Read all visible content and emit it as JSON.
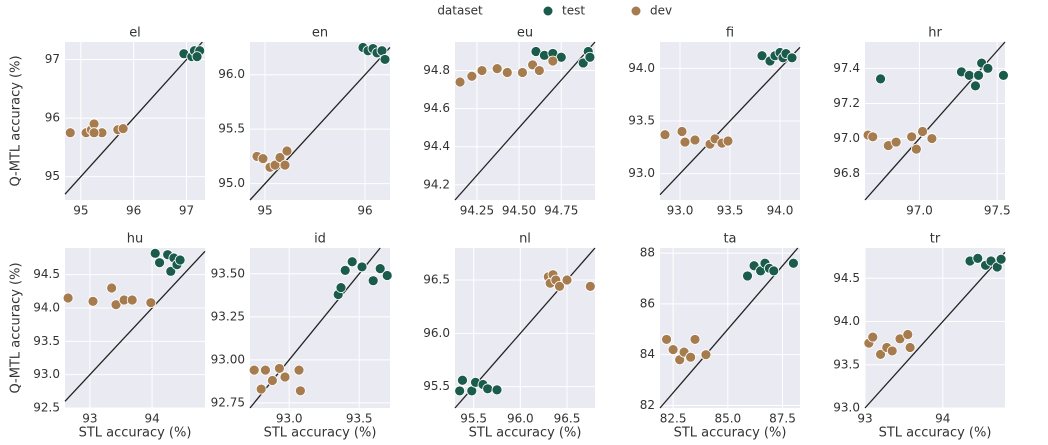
{
  "legend_title": "dataset",
  "chart_data": [
    {
      "type": "scatter",
      "title": "el",
      "ylabel": "Q-MTL accuracy (%)",
      "xlim": [
        94.7,
        97.35
      ],
      "xticks": [
        95,
        96,
        97
      ],
      "ylim": [
        94.6,
        97.3
      ],
      "yticks": [
        95,
        96,
        97
      ],
      "series": [
        {
          "name": "test",
          "color": "#1b5b4b",
          "x": [
            96.95,
            97.1,
            97.15,
            97.25,
            97.2
          ],
          "values": [
            97.1,
            97.05,
            97.15,
            97.15,
            97.05
          ]
        },
        {
          "name": "dev",
          "color": "#a67c4e",
          "x": [
            94.8,
            95.1,
            95.2,
            95.25,
            95.4,
            95.7,
            95.8,
            95.25
          ],
          "values": [
            95.75,
            95.75,
            95.8,
            95.9,
            95.75,
            95.8,
            95.82,
            95.75
          ]
        }
      ]
    },
    {
      "type": "scatter",
      "title": "en",
      "xlim": [
        94.85,
        96.25
      ],
      "xticks": [
        95,
        96
      ],
      "ylim": [
        94.85,
        96.3
      ],
      "yticks": [
        {
          "value": 95,
          "label": "95.0"
        },
        95.5,
        {
          "value": 96,
          "label": "96.0"
        }
      ],
      "series": [
        {
          "name": "test",
          "color": "#1b5b4b",
          "x": [
            95.98,
            96.03,
            96.08,
            96.12,
            96.17,
            96.2
          ],
          "values": [
            96.25,
            96.22,
            96.24,
            96.2,
            96.22,
            96.14
          ]
        },
        {
          "name": "dev",
          "color": "#a67c4e",
          "x": [
            94.92,
            94.98,
            95.05,
            95.1,
            95.15,
            95.2,
            95.22
          ],
          "values": [
            95.25,
            95.23,
            95.15,
            95.17,
            95.24,
            95.17,
            95.3
          ]
        }
      ]
    },
    {
      "type": "scatter",
      "title": "eu",
      "xlim": [
        94.12,
        94.95
      ],
      "xticks": [
        94.25,
        {
          "value": 94.5,
          "label": "94.50"
        },
        94.75
      ],
      "ylim": [
        94.12,
        94.95
      ],
      "yticks": [
        94.2,
        94.4,
        94.6,
        94.8
      ],
      "series": [
        {
          "name": "test",
          "color": "#1b5b4b",
          "x": [
            94.6,
            94.65,
            94.7,
            94.75,
            94.88,
            94.91,
            94.92
          ],
          "values": [
            94.9,
            94.88,
            94.89,
            94.87,
            94.84,
            94.9,
            94.87
          ]
        },
        {
          "name": "dev",
          "color": "#a67c4e",
          "x": [
            94.15,
            94.22,
            94.28,
            94.37,
            94.43,
            94.52,
            94.58,
            94.62,
            94.7
          ],
          "values": [
            94.74,
            94.77,
            94.8,
            94.81,
            94.79,
            94.79,
            94.83,
            94.8,
            94.85
          ]
        }
      ]
    },
    {
      "type": "scatter",
      "title": "fi",
      "xlim": [
        92.8,
        94.2
      ],
      "xticks": [
        {
          "value": 93,
          "label": "93.0"
        },
        93.5,
        {
          "value": 94,
          "label": "94.0"
        }
      ],
      "ylim": [
        92.75,
        94.25
      ],
      "yticks": [
        {
          "value": 93,
          "label": "93.0"
        },
        93.5,
        {
          "value": 94,
          "label": "94.0"
        }
      ],
      "series": [
        {
          "name": "test",
          "color": "#1b5b4b",
          "x": [
            93.82,
            93.9,
            93.95,
            94.0,
            94.03,
            94.06,
            94.12
          ],
          "values": [
            94.12,
            94.07,
            94.12,
            94.15,
            94.1,
            94.14,
            94.1
          ]
        },
        {
          "name": "dev",
          "color": "#a67c4e",
          "x": [
            92.85,
            93.02,
            93.05,
            93.15,
            93.3,
            93.35,
            93.42,
            93.48
          ],
          "values": [
            93.37,
            93.4,
            93.3,
            93.32,
            93.28,
            93.33,
            93.29,
            93.31
          ]
        }
      ]
    },
    {
      "type": "scatter",
      "title": "hr",
      "xlim": [
        96.65,
        97.55
      ],
      "xticks": [
        {
          "value": 97,
          "label": "97.0"
        },
        97.5
      ],
      "ylim": [
        96.65,
        97.55
      ],
      "yticks": [
        96.8,
        {
          "value": 97,
          "label": "97.0"
        },
        97.2,
        97.4
      ],
      "series": [
        {
          "name": "test",
          "color": "#1b5b4b",
          "x": [
            96.75,
            97.27,
            97.32,
            97.36,
            97.38,
            97.4,
            97.44,
            97.54
          ],
          "values": [
            97.34,
            97.38,
            97.36,
            97.3,
            97.36,
            97.43,
            97.4,
            97.36
          ]
        },
        {
          "name": "dev",
          "color": "#a67c4e",
          "x": [
            96.67,
            96.7,
            96.8,
            96.85,
            96.95,
            96.98,
            97.02,
            97.08
          ],
          "values": [
            97.02,
            97.01,
            96.96,
            96.98,
            97.01,
            96.94,
            97.04,
            97.0
          ]
        }
      ]
    },
    {
      "type": "scatter",
      "title": "hu",
      "ylabel": "Q-MTL accuracy (%)",
      "xlabel": "STL accuracy (%)",
      "xlim": [
        92.6,
        94.85
      ],
      "xticks": [
        93,
        94
      ],
      "ylim": [
        92.5,
        94.9
      ],
      "yticks": [
        92.5,
        {
          "value": 93,
          "label": "93.0"
        },
        93.5,
        {
          "value": 94,
          "label": "94.0"
        },
        94.5
      ],
      "series": [
        {
          "name": "test",
          "color": "#1b5b4b",
          "x": [
            94.05,
            94.12,
            94.25,
            94.3,
            94.35,
            94.4,
            94.45
          ],
          "values": [
            94.82,
            94.68,
            94.8,
            94.55,
            94.75,
            94.65,
            94.72
          ]
        },
        {
          "name": "dev",
          "color": "#a67c4e",
          "x": [
            92.65,
            93.05,
            93.35,
            93.42,
            93.55,
            93.68,
            93.98
          ],
          "values": [
            94.15,
            94.1,
            94.3,
            94.05,
            94.12,
            94.12,
            94.08
          ]
        }
      ]
    },
    {
      "type": "scatter",
      "title": "id",
      "xlabel": "STL accuracy (%)",
      "xlim": [
        92.72,
        93.72
      ],
      "xticks": [
        {
          "value": 93,
          "label": "93.0"
        },
        93.5
      ],
      "ylim": [
        92.72,
        93.65
      ],
      "yticks": [
        92.75,
        {
          "value": 93,
          "label": "93.00"
        },
        93.25,
        {
          "value": 93.5,
          "label": "93.50"
        }
      ],
      "series": [
        {
          "name": "test",
          "color": "#1b5b4b",
          "x": [
            93.35,
            93.37,
            93.4,
            93.45,
            93.52,
            93.6,
            93.65,
            93.7
          ],
          "values": [
            93.38,
            93.42,
            93.52,
            93.57,
            93.54,
            93.46,
            93.53,
            93.49
          ]
        },
        {
          "name": "dev",
          "color": "#a67c4e",
          "x": [
            92.75,
            92.8,
            92.83,
            92.88,
            92.93,
            92.97,
            93.07,
            93.08
          ],
          "values": [
            92.94,
            92.83,
            92.94,
            92.88,
            92.95,
            92.9,
            92.94,
            92.82
          ]
        }
      ]
    },
    {
      "type": "scatter",
      "title": "nl",
      "xlabel": "STL accuracy (%)",
      "xlim": [
        95.3,
        96.8
      ],
      "xticks": [
        95.5,
        {
          "value": 96,
          "label": "96.0"
        },
        96.5
      ],
      "ylim": [
        95.3,
        96.8
      ],
      "yticks": [
        95.5,
        {
          "value": 96,
          "label": "96.0"
        },
        96.5
      ],
      "series": [
        {
          "name": "test",
          "color": "#1b5b4b",
          "x": [
            95.35,
            95.38,
            95.48,
            95.52,
            95.6,
            95.65,
            95.75
          ],
          "values": [
            95.46,
            95.56,
            95.46,
            95.54,
            95.52,
            95.48,
            95.47
          ]
        },
        {
          "name": "dev",
          "color": "#a67c4e",
          "x": [
            96.3,
            96.32,
            96.35,
            96.38,
            96.42,
            96.5,
            96.75
          ],
          "values": [
            96.53,
            96.47,
            96.55,
            96.5,
            96.44,
            96.5,
            96.44
          ]
        }
      ]
    },
    {
      "type": "scatter",
      "title": "ta",
      "xlabel": "STL accuracy (%)",
      "xlim": [
        81.9,
        88.3
      ],
      "xticks": [
        82.5,
        {
          "value": 85,
          "label": "85.0"
        },
        87.5
      ],
      "ylim": [
        81.9,
        88.2
      ],
      "yticks": [
        82,
        84,
        86,
        88
      ],
      "series": [
        {
          "name": "test",
          "color": "#1b5b4b",
          "x": [
            85.9,
            86.2,
            86.5,
            86.7,
            86.9,
            87.1,
            88.0
          ],
          "values": [
            87.1,
            87.5,
            87.3,
            87.6,
            87.4,
            87.3,
            87.6
          ]
        },
        {
          "name": "dev",
          "color": "#a67c4e",
          "x": [
            82.2,
            82.5,
            82.8,
            83.0,
            83.3,
            83.5,
            84.0
          ],
          "values": [
            84.6,
            84.2,
            83.8,
            84.1,
            83.9,
            84.6,
            84.0
          ]
        }
      ]
    },
    {
      "type": "scatter",
      "title": "tr",
      "xlabel": "STL accuracy (%)",
      "xlim": [
        93.0,
        94.8
      ],
      "xticks": [
        93,
        94
      ],
      "ylim": [
        93.0,
        94.85
      ],
      "yticks": [
        {
          "value": 93,
          "label": "93.0"
        },
        93.5,
        {
          "value": 94,
          "label": "94.0"
        },
        94.5
      ],
      "series": [
        {
          "name": "test",
          "color": "#1b5b4b",
          "x": [
            94.35,
            94.45,
            94.55,
            94.62,
            94.7,
            94.75
          ],
          "values": [
            94.7,
            94.73,
            94.65,
            94.7,
            94.63,
            94.72
          ]
        },
        {
          "name": "dev",
          "color": "#a67c4e",
          "x": [
            93.05,
            93.1,
            93.2,
            93.28,
            93.35,
            93.45,
            93.55,
            93.58
          ],
          "values": [
            93.75,
            93.82,
            93.62,
            93.7,
            93.66,
            93.8,
            93.85,
            93.7
          ]
        }
      ]
    }
  ]
}
